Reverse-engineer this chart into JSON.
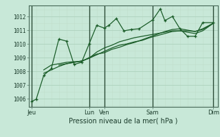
{
  "background_color": "#c8e8d8",
  "grid_major_color": "#b0d4c0",
  "grid_minor_color": "#c0deca",
  "line_color": "#1a5c28",
  "vline_color": "#2a4a35",
  "xlabel": "Pression niveau de la mer( hPa )",
  "ylim": [
    1005.4,
    1012.8
  ],
  "yticks": [
    1006,
    1007,
    1008,
    1009,
    1010,
    1011,
    1012
  ],
  "xlim": [
    0,
    12.5
  ],
  "xtick_positions": [
    0.2,
    4.0,
    5.0,
    8.2,
    12.2
  ],
  "xtick_labels": [
    "Jeu",
    "Lun",
    "Ven",
    "Sam",
    "Dim"
  ],
  "vline_positions": [
    0.2,
    4.0,
    5.0,
    8.2,
    12.2
  ],
  "series": [
    {
      "x": [
        0.2,
        0.5,
        1.0,
        1.5,
        2.0,
        2.5,
        3.0,
        3.5,
        4.0,
        4.5,
        5.0,
        5.3,
        5.8,
        6.3,
        6.8,
        7.3,
        8.2,
        8.7,
        9.0,
        9.5,
        10.0,
        10.5,
        11.0,
        11.5,
        12.2
      ],
      "y": [
        1005.8,
        1005.95,
        1007.7,
        1008.2,
        1010.35,
        1010.2,
        1008.5,
        1008.65,
        1010.0,
        1011.35,
        1011.15,
        1011.35,
        1011.85,
        1010.95,
        1011.05,
        1011.1,
        1011.75,
        1012.55,
        1011.7,
        1012.0,
        1011.1,
        1010.55,
        1010.55,
        1011.55,
        1011.55
      ],
      "marker": "+"
    },
    {
      "x": [
        1.0,
        1.5,
        2.0,
        2.5,
        3.0,
        3.5,
        4.0,
        4.5,
        5.0,
        5.5,
        6.0,
        6.5,
        7.0,
        7.5,
        8.0,
        8.5,
        9.0,
        9.5,
        10.0,
        10.5,
        11.0,
        11.5,
        12.2
      ],
      "y": [
        1008.1,
        1008.45,
        1008.55,
        1008.65,
        1008.7,
        1008.7,
        1009.0,
        1009.25,
        1009.35,
        1009.6,
        1009.75,
        1009.95,
        1010.1,
        1010.3,
        1010.5,
        1010.7,
        1010.9,
        1011.05,
        1011.1,
        1011.0,
        1010.9,
        1011.1,
        1011.5
      ],
      "marker": null
    },
    {
      "x": [
        1.0,
        1.5,
        2.0,
        2.5,
        3.0,
        3.5,
        4.0,
        4.5,
        5.0,
        5.5,
        6.0,
        6.5,
        7.0,
        7.5,
        8.0,
        8.5,
        9.0,
        9.5,
        10.0,
        10.5,
        11.0,
        11.5,
        12.2
      ],
      "y": [
        1007.85,
        1008.1,
        1008.35,
        1008.55,
        1008.65,
        1008.75,
        1008.95,
        1009.4,
        1009.7,
        1009.9,
        1010.15,
        1010.3,
        1010.45,
        1010.55,
        1010.65,
        1010.75,
        1010.85,
        1010.95,
        1010.95,
        1010.95,
        1010.9,
        1011.05,
        1011.5
      ],
      "marker": null
    },
    {
      "x": [
        2.0,
        2.5,
        3.0,
        3.5,
        4.0,
        4.5,
        5.0,
        5.5,
        6.0,
        6.5,
        7.0,
        7.5,
        8.0,
        8.5,
        9.0,
        9.5,
        10.0,
        10.5,
        11.0,
        11.5,
        12.2
      ],
      "y": [
        1008.45,
        1008.55,
        1008.65,
        1008.75,
        1008.95,
        1009.2,
        1009.45,
        1009.7,
        1009.9,
        1010.0,
        1010.15,
        1010.25,
        1010.45,
        1010.6,
        1010.75,
        1010.9,
        1010.95,
        1010.85,
        1010.75,
        1010.95,
        1011.5
      ],
      "marker": null
    }
  ]
}
